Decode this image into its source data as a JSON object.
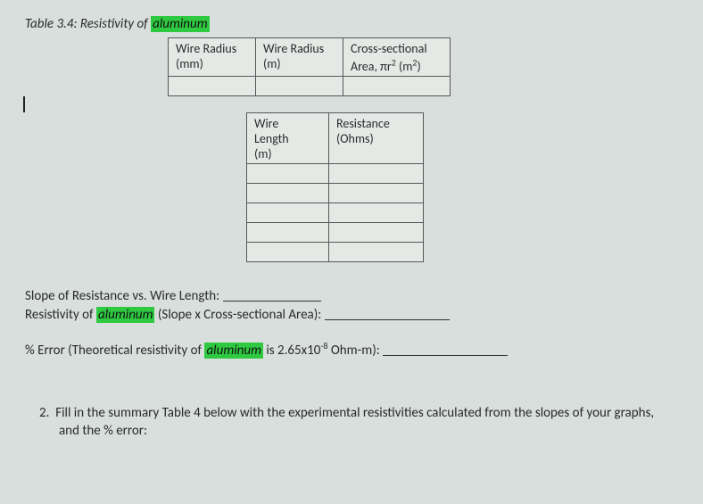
{
  "title": {
    "prefix": "Table 3.4: Resistivity of ",
    "highlight": "aluminum"
  },
  "table1": {
    "headers": {
      "c1a": "Wire Radius",
      "c1b": "(mm)",
      "c2a": "Wire Radius",
      "c2b": "(m)",
      "c3a": "Cross-sectional",
      "c3b": "Area, πr² (m²)"
    }
  },
  "table2": {
    "headers": {
      "c1a": "Wire",
      "c1b": "Length",
      "c1c": "(m)",
      "c2a": "Resistance",
      "c2b": "(Ohms)"
    }
  },
  "lines": {
    "slope": "Slope of Resistance vs. Wire Length: ",
    "resist_pre": "Resistivity of ",
    "resist_hl": "aluminum",
    "resist_post": " (Slope x Cross-sectional Area): ",
    "err_pre": "% Error (Theoretical resistivity of ",
    "err_hl": "aluminum",
    "err_post_a": " is 2.65x10",
    "err_exp": "-8",
    "err_post_b": " Ohm-m): "
  },
  "q2": {
    "num": "2.",
    "text": "Fill in the summary Table 4 below with the experimental resistivities calculated from the slopes of your graphs, and the % error:"
  }
}
